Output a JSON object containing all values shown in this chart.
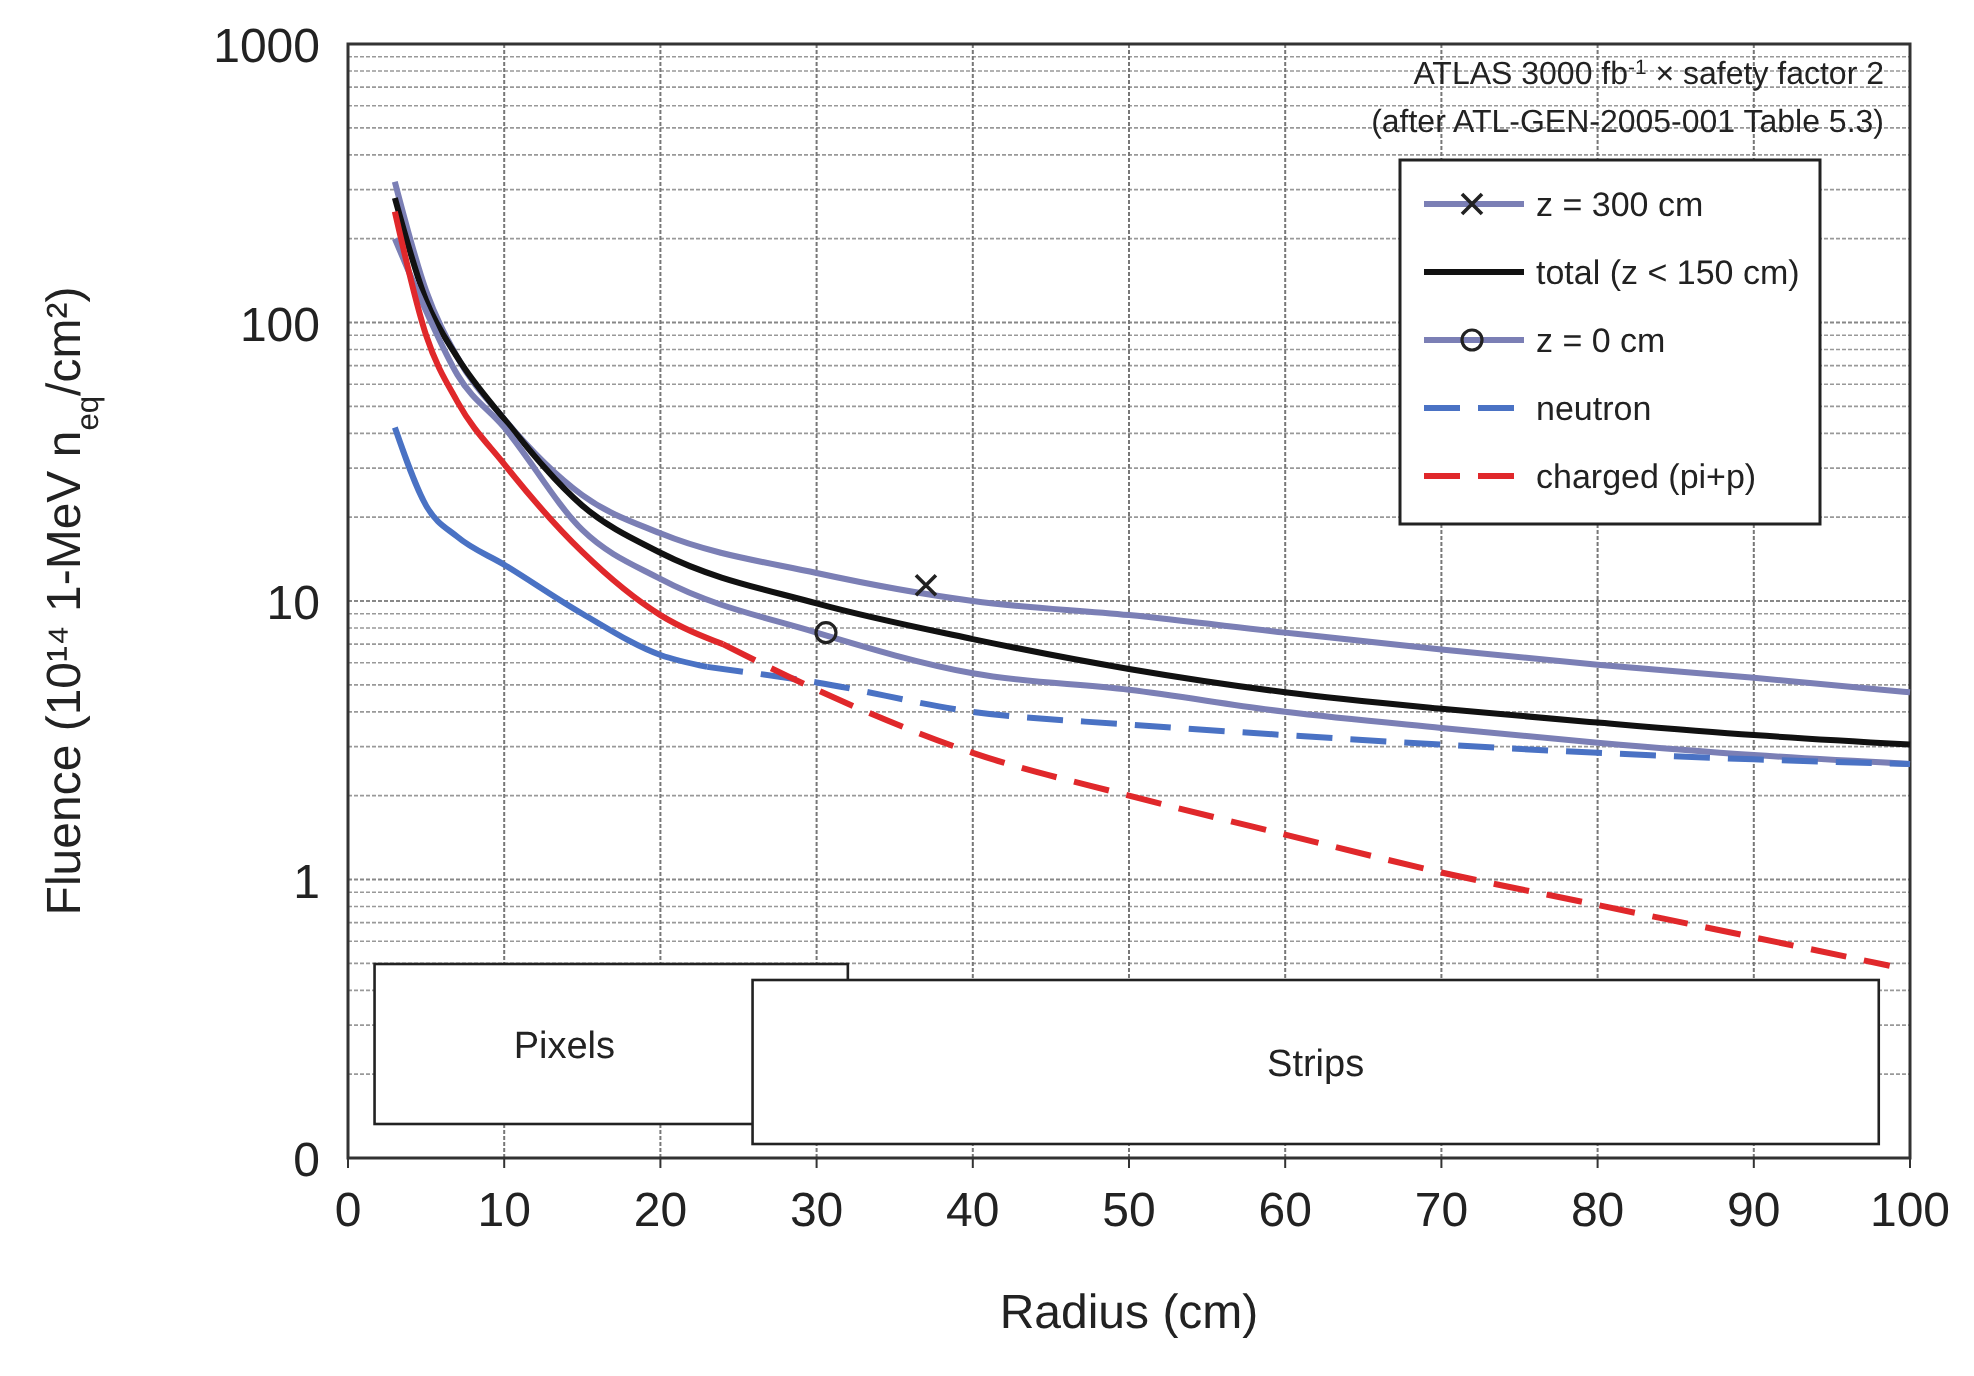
{
  "chart_data": {
    "type": "line",
    "xlabel": "Radius (cm)",
    "ylabel": "Fluence (10¹⁴ 1-MeV n$_{eq}$/cm²)",
    "log": "y",
    "grid": true,
    "legend": "top right",
    "xlim": [
      0,
      100
    ],
    "xticks": [
      0,
      10,
      20,
      30,
      40,
      50,
      60,
      70,
      80,
      90,
      100
    ],
    "ylim": [
      0.1,
      1000
    ],
    "yticks": [
      {
        "value": 0.1,
        "label": "0"
      },
      1,
      10,
      100,
      1000
    ],
    "annotations": [
      "ATLAS 3000 fb$^{-1}$ × safety factor 2",
      "(after ATL-GEN-2005-001 Table 5.3)"
    ],
    "bands": [
      {
        "axis": "x",
        "from": 1.7,
        "to": 32,
        "label": "Pixels",
        "color": "#ffffff"
      },
      {
        "axis": "x",
        "from": 25.9,
        "to": 98,
        "label": "Strips",
        "color": "#ffffff"
      }
    ],
    "series": [
      {
        "name": "z = 300 cm",
        "color": "#7b7fb5",
        "line_style": "solid",
        "x": [
          3,
          5,
          7,
          10,
          15,
          20,
          30,
          40,
          50,
          60,
          70,
          80,
          90,
          100
        ],
        "values": [
          320,
          130,
          75,
          45,
          24,
          17.5,
          12.6,
          10,
          8.9,
          7.7,
          6.7,
          5.9,
          5.3,
          4.7
        ]
      },
      {
        "type": "scatter",
        "color": "#222222",
        "marker": "cross",
        "x": [
          37
        ],
        "values": [
          11.4
        ]
      },
      {
        "name": "total (z < 150 cm)",
        "color": "#111111",
        "line_style": "solid",
        "x": [
          3,
          5,
          7,
          10,
          15,
          20,
          30,
          40,
          50,
          60,
          70,
          80,
          90,
          100
        ],
        "values": [
          280,
          120,
          75,
          45,
          22,
          14.9,
          9.8,
          7.3,
          5.7,
          4.7,
          4.1,
          3.66,
          3.3,
          3.05
        ]
      },
      {
        "name": "z = 0 cm",
        "color": "#7b7fb5",
        "line_style": "solid",
        "x": [
          3,
          5,
          7,
          10,
          15,
          20,
          30,
          40,
          50,
          60,
          70,
          80,
          90,
          100
        ],
        "values": [
          200,
          110,
          65,
          42,
          18,
          12,
          7.7,
          5.5,
          4.8,
          4.0,
          3.5,
          3.1,
          2.8,
          2.6
        ]
      },
      {
        "type": "scatter",
        "color": "#222222",
        "marker": "circle",
        "x": [
          30.6
        ],
        "values": [
          7.7
        ]
      },
      {
        "color": "#4a72c4",
        "line_style": "solid",
        "x": [
          3,
          5,
          7,
          10,
          15,
          20,
          23
        ],
        "values": [
          42,
          22,
          17,
          13.5,
          9,
          6.4,
          5.8
        ]
      },
      {
        "name": "neutron",
        "color": "#4a72c4",
        "line_style": "dashed",
        "x": [
          23,
          30,
          40,
          50,
          60,
          70,
          80,
          90,
          100
        ],
        "values": [
          5.8,
          5.1,
          4.0,
          3.6,
          3.3,
          3.05,
          2.85,
          2.7,
          2.6
        ]
      },
      {
        "color": "#e0282b",
        "line_style": "solid",
        "x": [
          3,
          5,
          7,
          10,
          15,
          20,
          24
        ],
        "values": [
          250,
          90,
          52,
          31,
          15,
          8.9,
          7.0
        ]
      },
      {
        "name": "charged (pi+p)",
        "color": "#e0282b",
        "line_style": "dashed",
        "x": [
          24,
          30,
          40,
          50,
          60,
          70,
          80,
          90,
          98.7
        ],
        "values": [
          7.0,
          4.8,
          2.85,
          2.0,
          1.45,
          1.06,
          0.81,
          0.62,
          0.49
        ]
      }
    ]
  }
}
